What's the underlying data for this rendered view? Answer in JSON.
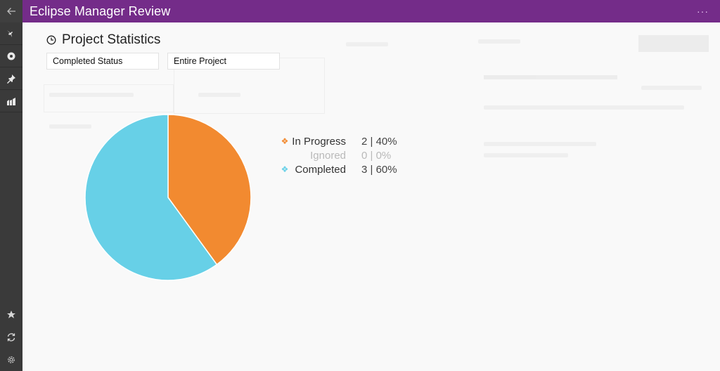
{
  "app": {
    "title": "Eclipse Manager Review",
    "more_label": "···"
  },
  "sidebar": {
    "back": {
      "icon": "back-arrow-icon"
    },
    "top_items": [
      {
        "icon": "bird-icon"
      },
      {
        "icon": "target-icon"
      },
      {
        "icon": "pin-icon"
      },
      {
        "icon": "chart-icon"
      }
    ],
    "bottom_items": [
      {
        "icon": "star-icon"
      },
      {
        "icon": "sync-icon"
      },
      {
        "icon": "gear-icon"
      }
    ]
  },
  "stats": {
    "title": "Project Statistics",
    "icon": "clock-icon",
    "status_filter": "Completed Status",
    "scope_filter": "Entire Project"
  },
  "colors": {
    "titlebar": "#742c89",
    "in_progress": "#f28a30",
    "completed": "#67d0e7",
    "ignored": "#bdbdbd"
  },
  "legend": [
    {
      "label": "In Progress",
      "value": "2 | 40%",
      "color": "#f28a30",
      "marker": "❖"
    },
    {
      "label": "Ignored",
      "value": "0 | 0%",
      "color": "#bdbdbd",
      "marker": ""
    },
    {
      "label": "Completed",
      "value": "3 | 60%",
      "color": "#67d0e7",
      "marker": "❖"
    }
  ],
  "chart_data": {
    "type": "pie",
    "title": "Project Statistics",
    "categories": [
      "In Progress",
      "Ignored",
      "Completed"
    ],
    "values": [
      2,
      0,
      3
    ],
    "percentages": [
      40,
      0,
      60
    ],
    "colors": [
      "#f28a30",
      "#bdbdbd",
      "#67d0e7"
    ],
    "legend_position": "right",
    "start_angle_deg": 0,
    "direction": "clockwise"
  }
}
